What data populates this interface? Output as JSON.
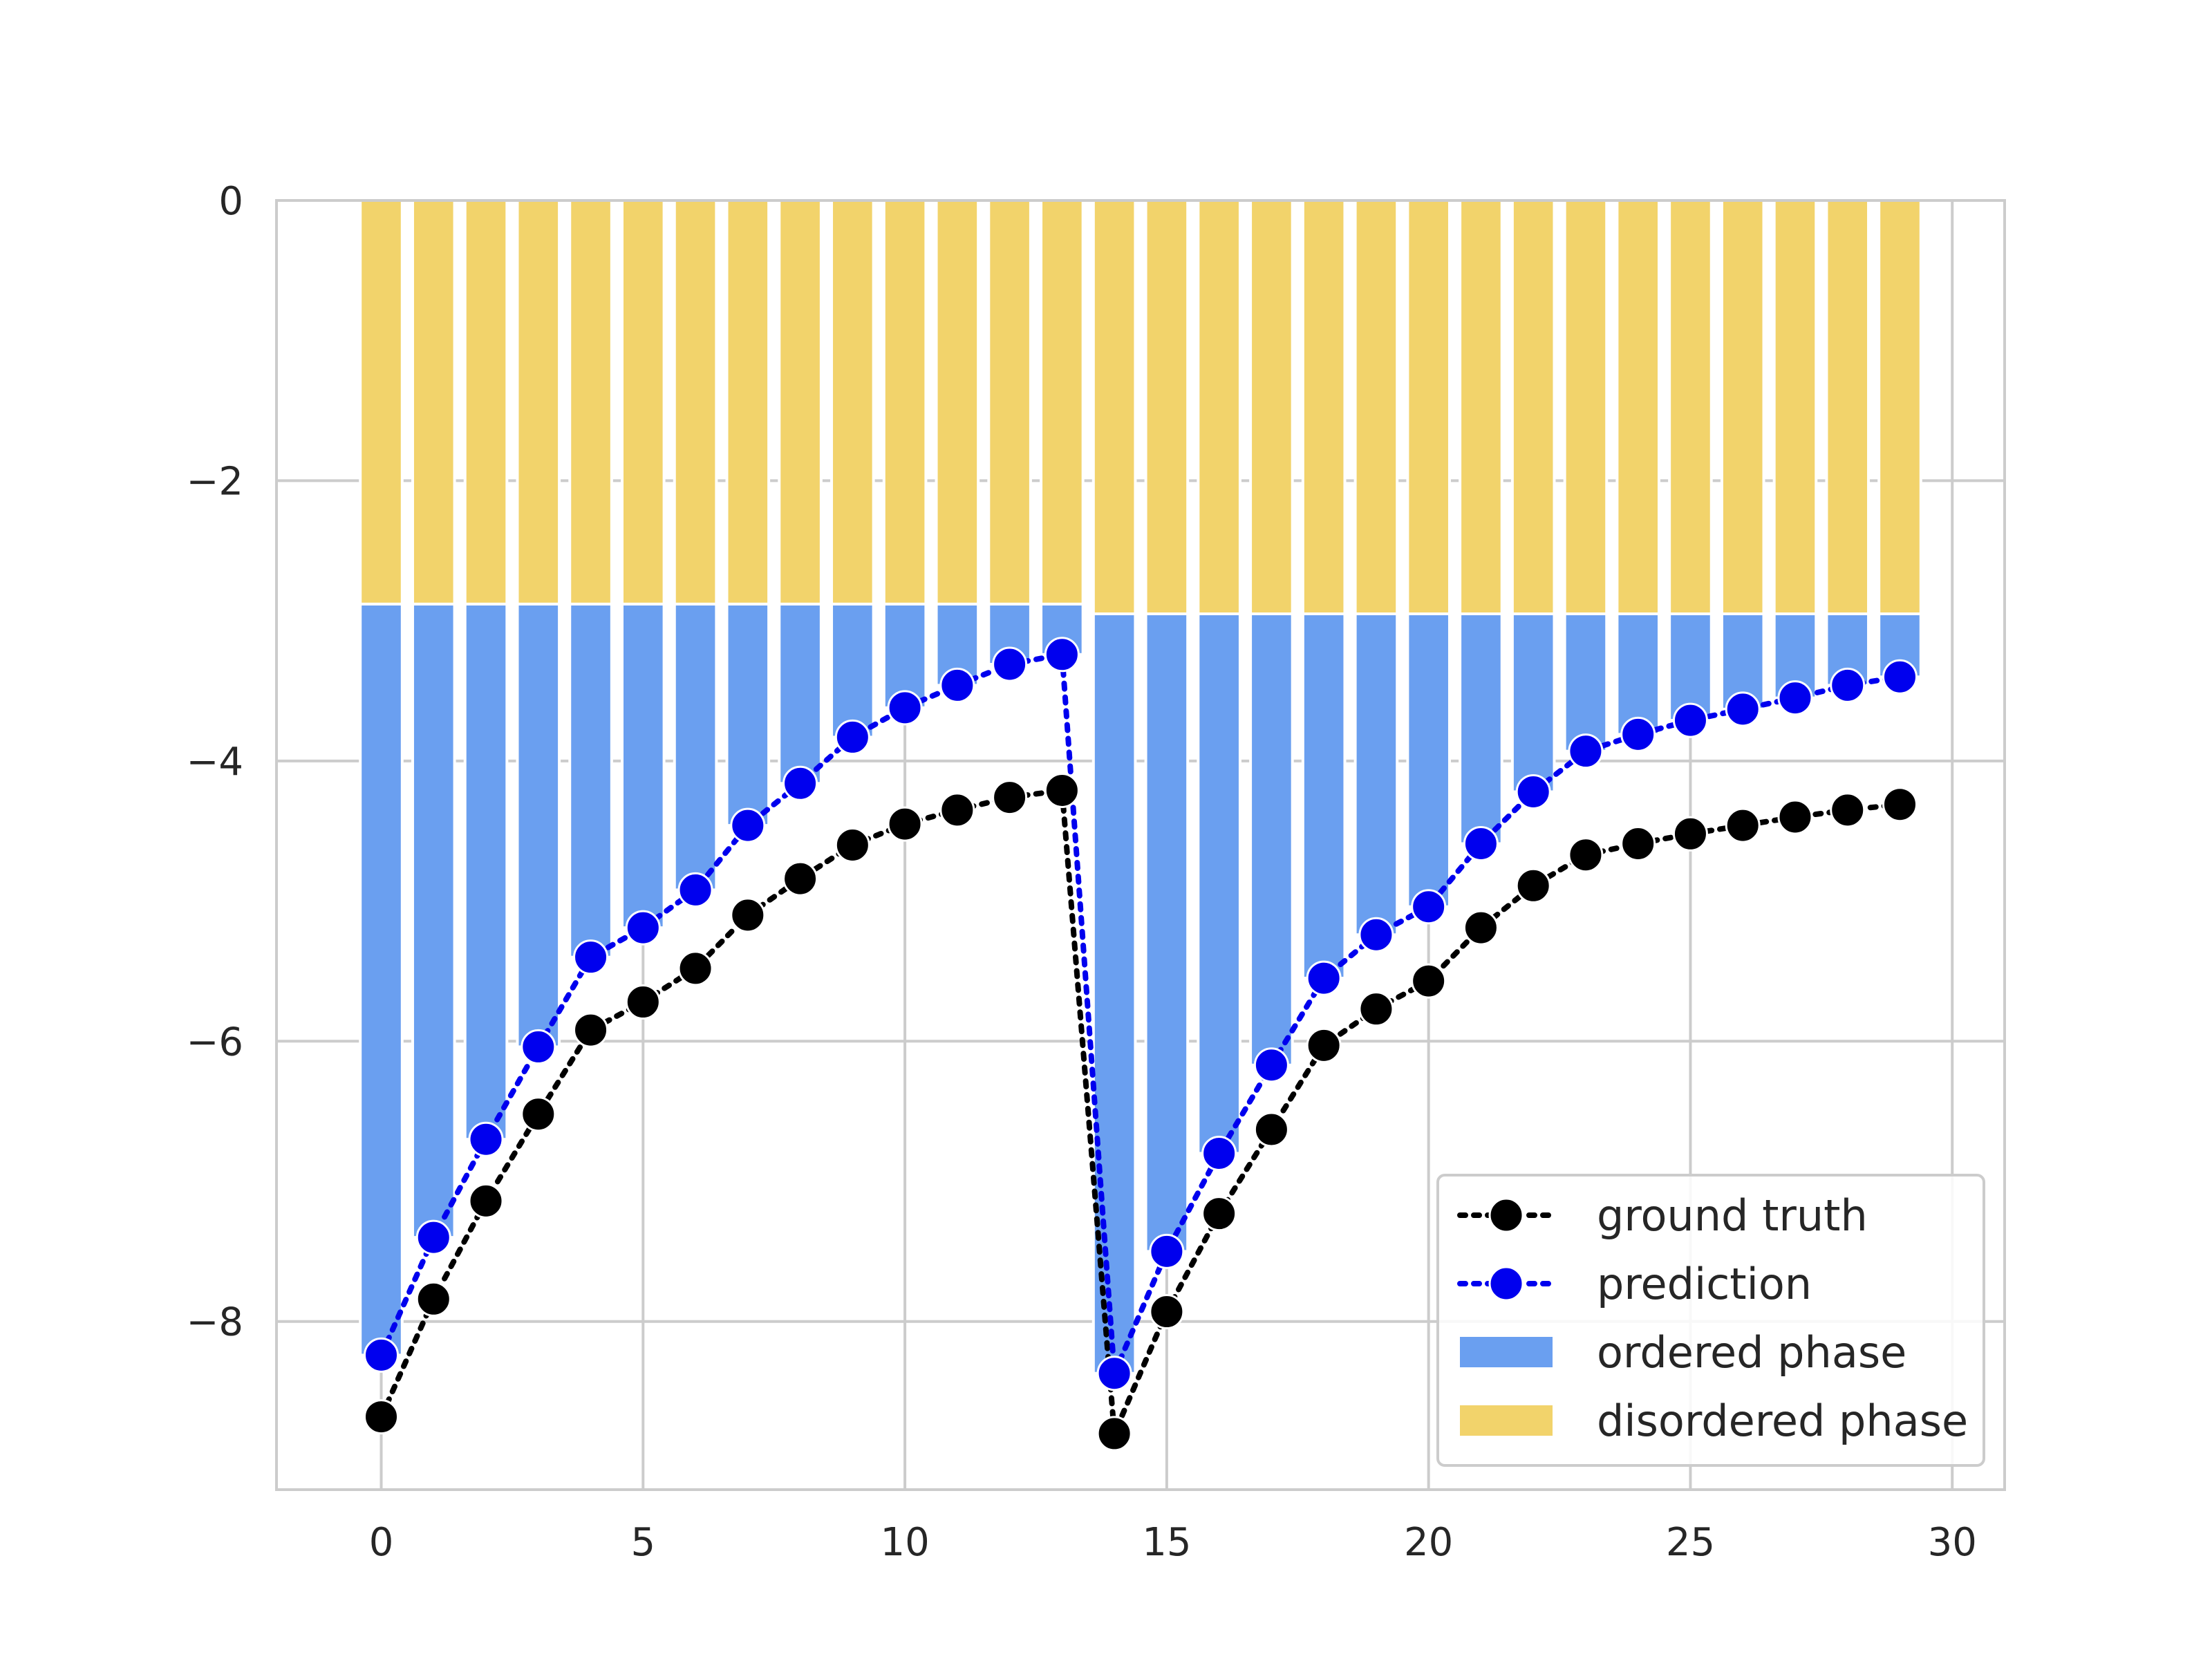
{
  "chart_data": {
    "type": "bar",
    "x": [
      0,
      1,
      2,
      3,
      4,
      5,
      6,
      7,
      8,
      9,
      10,
      11,
      12,
      13,
      14,
      15,
      16,
      17,
      18,
      19,
      20,
      21,
      22,
      23,
      24,
      25,
      26,
      27,
      28,
      29
    ],
    "xlim": [
      -2,
      31
    ],
    "ylim": [
      -9.2,
      0
    ],
    "xticks": [
      0,
      5,
      10,
      15,
      20,
      25,
      30
    ],
    "xtick_labels": [
      "0",
      "5",
      "10",
      "15",
      "20",
      "25",
      "30"
    ],
    "yticks": [
      0,
      -2,
      -4,
      -6,
      -8
    ],
    "ytick_labels": [
      "0",
      "−2",
      "−4",
      "−6",
      "−8"
    ],
    "grid": true,
    "legend_position": "lower-right",
    "series": [
      {
        "name": "ground truth",
        "kind": "line",
        "style": "dotted",
        "color": "#000000",
        "values": [
          -8.68,
          -7.84,
          -7.14,
          -6.52,
          -5.92,
          -5.72,
          -5.48,
          -5.1,
          -4.84,
          -4.6,
          -4.45,
          -4.35,
          -4.26,
          -4.21,
          -8.8,
          -7.93,
          -7.23,
          -6.63,
          -6.03,
          -5.77,
          -5.57,
          -5.19,
          -4.89,
          -4.67,
          -4.59,
          -4.52,
          -4.46,
          -4.4,
          -4.35,
          -4.31
        ]
      },
      {
        "name": "prediction",
        "kind": "line",
        "style": "dotted",
        "color": "#0000ee",
        "values": [
          -8.24,
          -7.4,
          -6.7,
          -6.04,
          -5.4,
          -5.19,
          -4.92,
          -4.46,
          -4.16,
          -3.83,
          -3.62,
          -3.46,
          -3.31,
          -3.24,
          -8.37,
          -7.5,
          -6.8,
          -6.17,
          -5.55,
          -5.24,
          -5.04,
          -4.59,
          -4.22,
          -3.93,
          -3.81,
          -3.71,
          -3.63,
          -3.55,
          -3.46,
          -3.4
        ]
      },
      {
        "name": "ordered phase",
        "kind": "bar",
        "color": "#6a9ff0",
        "bottom": [
          -2.88,
          -2.88,
          -2.88,
          -2.88,
          -2.88,
          -2.88,
          -2.88,
          -2.88,
          -2.88,
          -2.88,
          -2.88,
          -2.88,
          -2.88,
          -2.88,
          -2.95,
          -2.95,
          -2.95,
          -2.95,
          -2.95,
          -2.95,
          -2.95,
          -2.95,
          -2.95,
          -2.95,
          -2.95,
          -2.95,
          -2.95,
          -2.95,
          -2.95,
          -2.95
        ],
        "values": [
          -8.24,
          -7.4,
          -6.7,
          -6.04,
          -5.4,
          -5.19,
          -4.92,
          -4.46,
          -4.16,
          -3.83,
          -3.62,
          -3.46,
          -3.31,
          -3.24,
          -8.37,
          -7.5,
          -6.8,
          -6.17,
          -5.55,
          -5.24,
          -5.04,
          -4.59,
          -4.22,
          -3.93,
          -3.81,
          -3.71,
          -3.63,
          -3.55,
          -3.46,
          -3.4
        ]
      },
      {
        "name": "disordered phase",
        "kind": "bar",
        "color": "#f2d36b",
        "bottom": [
          0,
          0,
          0,
          0,
          0,
          0,
          0,
          0,
          0,
          0,
          0,
          0,
          0,
          0,
          0,
          0,
          0,
          0,
          0,
          0,
          0,
          0,
          0,
          0,
          0,
          0,
          0,
          0,
          0,
          0
        ],
        "values": [
          -2.88,
          -2.88,
          -2.88,
          -2.88,
          -2.88,
          -2.88,
          -2.88,
          -2.88,
          -2.88,
          -2.88,
          -2.88,
          -2.88,
          -2.88,
          -2.88,
          -2.95,
          -2.95,
          -2.95,
          -2.95,
          -2.95,
          -2.95,
          -2.95,
          -2.95,
          -2.95,
          -2.95,
          -2.95,
          -2.95,
          -2.95,
          -2.95,
          -2.95,
          -2.95
        ]
      }
    ]
  }
}
